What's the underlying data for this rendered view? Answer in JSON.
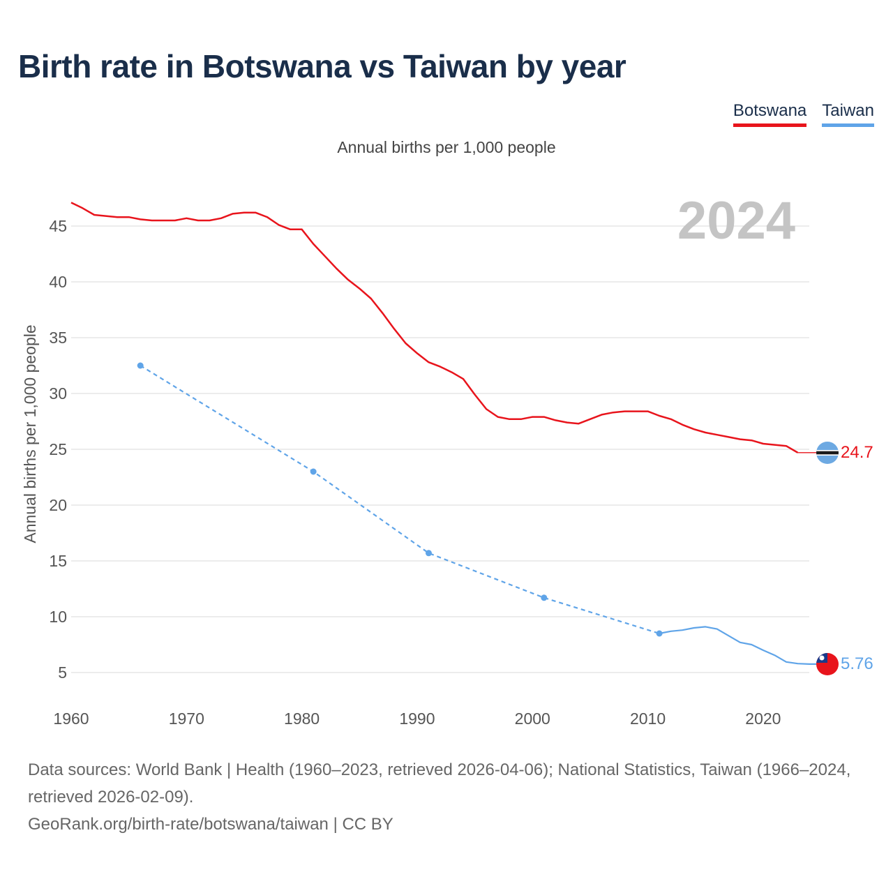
{
  "title": "Birth rate in Botswana vs Taiwan by year",
  "subtitle": "Annual births per 1,000 people",
  "year_label": "2024",
  "legend": [
    {
      "label": "Botswana",
      "color": "#e8141c"
    },
    {
      "label": "Taiwan",
      "color": "#5fa4e8"
    }
  ],
  "footer": {
    "sources": "Data sources: World Bank | Health (1960–2023, retrieved 2026-04-06); National Statistics, Taiwan (1966–2024, retrieved 2026-02-09).",
    "link": "GeoRank.org/birth-rate/botswana/taiwan | CC BY"
  },
  "chart_data": {
    "type": "line",
    "title": "Birth rate in Botswana vs Taiwan by year",
    "ylabel": "Annual births per 1,000 people",
    "xlabel": "",
    "xlim": [
      1960,
      2024
    ],
    "ylim": [
      3,
      48
    ],
    "x_ticks": [
      1960,
      1970,
      1980,
      1990,
      2000,
      2010,
      2020
    ],
    "y_ticks": [
      5,
      10,
      15,
      20,
      25,
      30,
      35,
      40,
      45
    ],
    "series": [
      {
        "name": "Botswana",
        "color": "#e8141c",
        "end_label": "24.7",
        "points": [
          [
            1960,
            47.1
          ],
          [
            1961,
            46.6
          ],
          [
            1962,
            46.0
          ],
          [
            1963,
            45.9
          ],
          [
            1964,
            45.8
          ],
          [
            1965,
            45.8
          ],
          [
            1966,
            45.6
          ],
          [
            1967,
            45.5
          ],
          [
            1968,
            45.5
          ],
          [
            1969,
            45.5
          ],
          [
            1970,
            45.7
          ],
          [
            1971,
            45.5
          ],
          [
            1972,
            45.5
          ],
          [
            1973,
            45.7
          ],
          [
            1974,
            46.1
          ],
          [
            1975,
            46.2
          ],
          [
            1976,
            46.2
          ],
          [
            1977,
            45.8
          ],
          [
            1978,
            45.1
          ],
          [
            1979,
            44.7
          ],
          [
            1980,
            44.7
          ],
          [
            1981,
            43.4
          ],
          [
            1982,
            42.3
          ],
          [
            1983,
            41.2
          ],
          [
            1984,
            40.2
          ],
          [
            1985,
            39.4
          ],
          [
            1986,
            38.5
          ],
          [
            1987,
            37.2
          ],
          [
            1988,
            35.8
          ],
          [
            1989,
            34.5
          ],
          [
            1990,
            33.6
          ],
          [
            1991,
            32.8
          ],
          [
            1992,
            32.4
          ],
          [
            1993,
            31.9
          ],
          [
            1994,
            31.3
          ],
          [
            1995,
            29.9
          ],
          [
            1996,
            28.6
          ],
          [
            1997,
            27.9
          ],
          [
            1998,
            27.7
          ],
          [
            1999,
            27.7
          ],
          [
            2000,
            27.9
          ],
          [
            2001,
            27.9
          ],
          [
            2002,
            27.6
          ],
          [
            2003,
            27.4
          ],
          [
            2004,
            27.3
          ],
          [
            2005,
            27.7
          ],
          [
            2006,
            28.1
          ],
          [
            2007,
            28.3
          ],
          [
            2008,
            28.4
          ],
          [
            2009,
            28.4
          ],
          [
            2010,
            28.4
          ],
          [
            2011,
            28.0
          ],
          [
            2012,
            27.7
          ],
          [
            2013,
            27.2
          ],
          [
            2014,
            26.8
          ],
          [
            2015,
            26.5
          ],
          [
            2016,
            26.3
          ],
          [
            2017,
            26.1
          ],
          [
            2018,
            25.9
          ],
          [
            2019,
            25.8
          ],
          [
            2020,
            25.5
          ],
          [
            2021,
            25.4
          ],
          [
            2022,
            25.3
          ],
          [
            2023,
            24.7
          ],
          [
            2024,
            24.7
          ]
        ]
      },
      {
        "name": "Taiwan",
        "color": "#5fa4e8",
        "end_label": "5.76",
        "markers": [
          [
            1966,
            32.5
          ],
          [
            1981,
            23.0
          ],
          [
            1991,
            15.7
          ],
          [
            2001,
            11.7
          ],
          [
            2011,
            8.5
          ]
        ],
        "points": [
          [
            1966,
            32.5
          ],
          [
            1981,
            23.0
          ],
          [
            1991,
            15.7
          ],
          [
            2001,
            11.7
          ],
          [
            2011,
            8.5
          ],
          [
            2012,
            8.7
          ],
          [
            2013,
            8.8
          ],
          [
            2014,
            9.0
          ],
          [
            2015,
            9.1
          ],
          [
            2016,
            8.9
          ],
          [
            2017,
            8.3
          ],
          [
            2018,
            7.7
          ],
          [
            2019,
            7.5
          ],
          [
            2020,
            7.0
          ],
          [
            2021,
            6.55
          ],
          [
            2022,
            5.95
          ],
          [
            2023,
            5.8
          ],
          [
            2024,
            5.76
          ]
        ]
      }
    ]
  }
}
